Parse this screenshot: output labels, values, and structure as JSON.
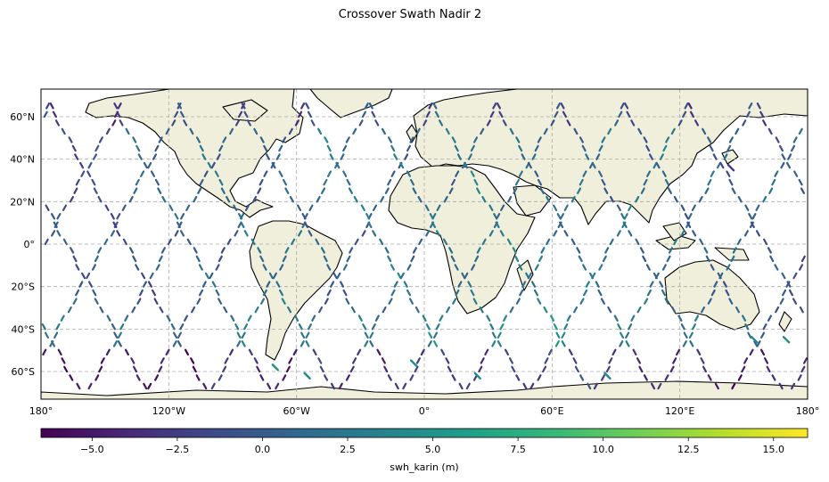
{
  "figure": {
    "title": "Crossover Swath Nadir 2"
  },
  "map": {
    "projection": "PlateCarree",
    "lon_range": [
      -180,
      180
    ],
    "lat_range": [
      -73,
      73
    ],
    "gridlines": true,
    "lon_ticks": [
      {
        "value": -180,
        "label": "180°"
      },
      {
        "value": -120,
        "label": "120°W"
      },
      {
        "value": -60,
        "label": "60°W"
      },
      {
        "value": 0,
        "label": "0°"
      },
      {
        "value": 60,
        "label": "60°E"
      },
      {
        "value": 120,
        "label": "120°E"
      },
      {
        "value": 180,
        "label": "180°"
      }
    ],
    "lat_ticks": [
      {
        "value": 60,
        "label": "60°N"
      },
      {
        "value": 40,
        "label": "40°N"
      },
      {
        "value": 20,
        "label": "20°N"
      },
      {
        "value": 0,
        "label": "0°"
      },
      {
        "value": -20,
        "label": "20°S"
      },
      {
        "value": -40,
        "label": "40°S"
      },
      {
        "value": -60,
        "label": "60°S"
      }
    ],
    "land_color": "#efefdb",
    "ocean_color": "#ffffff"
  },
  "colorbar": {
    "label": "swh_karin (m)",
    "colormap": "viridis",
    "range": [
      -6.5,
      16
    ],
    "ticks": [
      {
        "value": -5,
        "label": "−5.0"
      },
      {
        "value": -2.5,
        "label": "−2.5"
      },
      {
        "value": 0,
        "label": "0.0"
      },
      {
        "value": 2.5,
        "label": "2.5"
      },
      {
        "value": 5,
        "label": "5.0"
      },
      {
        "value": 7.5,
        "label": "7.5"
      },
      {
        "value": 10,
        "label": "10.0"
      },
      {
        "value": 12.5,
        "label": "12.5"
      },
      {
        "value": 15,
        "label": "15.0"
      }
    ],
    "stops": [
      "#440154",
      "#482878",
      "#3e4989",
      "#31688e",
      "#26828e",
      "#1f9e89",
      "#35b779",
      "#6ece58",
      "#b5de2b",
      "#fde725"
    ]
  },
  "chart_data": {
    "type": "scatter",
    "description_variable": "swh_karin (m)",
    "tracks": [
      {
        "lon_eq": -178,
        "dir": 1,
        "v": -1.0
      },
      {
        "lon_eq": -168,
        "dir": -1,
        "v": -0.5
      },
      {
        "lon_eq": -150,
        "dir": 1,
        "v": 0.5
      },
      {
        "lon_eq": -140,
        "dir": -1,
        "v": -1.5
      },
      {
        "lon_eq": -120,
        "dir": 1,
        "v": 0.0
      },
      {
        "lon_eq": -110,
        "dir": -1,
        "v": 1.0
      },
      {
        "lon_eq": -92,
        "dir": 1,
        "v": -0.5
      },
      {
        "lon_eq": -80,
        "dir": -1,
        "v": 2.0
      },
      {
        "lon_eq": -62,
        "dir": 1,
        "v": 1.5
      },
      {
        "lon_eq": -50,
        "dir": -1,
        "v": 0.5
      },
      {
        "lon_eq": -32,
        "dir": 1,
        "v": 0.0
      },
      {
        "lon_eq": -20,
        "dir": -1,
        "v": 2.5
      },
      {
        "lon_eq": -2,
        "dir": 1,
        "v": 1.0
      },
      {
        "lon_eq": 10,
        "dir": -1,
        "v": 2.0
      },
      {
        "lon_eq": 28,
        "dir": 1,
        "v": 1.5
      },
      {
        "lon_eq": 40,
        "dir": -1,
        "v": 3.0
      },
      {
        "lon_eq": 58,
        "dir": 1,
        "v": 2.0
      },
      {
        "lon_eq": 70,
        "dir": -1,
        "v": 1.0
      },
      {
        "lon_eq": 88,
        "dir": 1,
        "v": 2.5
      },
      {
        "lon_eq": 100,
        "dir": -1,
        "v": 0.5
      },
      {
        "lon_eq": 118,
        "dir": 1,
        "v": 1.5
      },
      {
        "lon_eq": 130,
        "dir": -1,
        "v": 0.0
      },
      {
        "lon_eq": 148,
        "dir": 1,
        "v": 1.0
      },
      {
        "lon_eq": 160,
        "dir": -1,
        "v": -0.5
      }
    ],
    "extra_points": [
      {
        "lon": 144,
        "lat": 36,
        "v": -3.0
      },
      {
        "lon": 86,
        "lat": -62,
        "v": 4.0
      },
      {
        "lon": 25,
        "lat": -62,
        "v": 5.0
      },
      {
        "lon": -5,
        "lat": -56,
        "v": 4.5
      },
      {
        "lon": -55,
        "lat": -62,
        "v": 4.0
      },
      {
        "lon": -70,
        "lat": -58,
        "v": 5.0
      },
      {
        "lon": 155,
        "lat": -45,
        "v": 4.0
      },
      {
        "lon": 170,
        "lat": -45,
        "v": 4.5
      }
    ]
  }
}
